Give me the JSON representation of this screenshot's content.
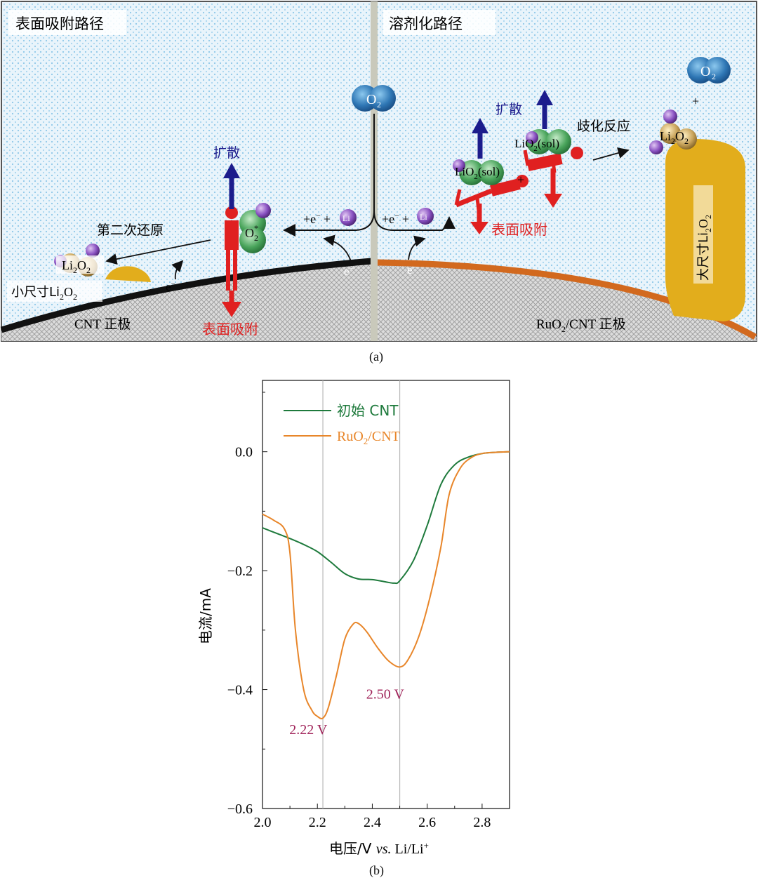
{
  "panel_a": {
    "caption": "(a)",
    "left_title": "表面吸附路径",
    "right_title": "溶剂化路径",
    "o2": "O",
    "o2_sub": "2",
    "o2_star_sub": "2",
    "o2_star_sup": "*",
    "diffuse": "扩散",
    "surface_adsorb": "表面吸附",
    "second_reduction": "第二次还原",
    "li2o2_main": "Li",
    "li2o2_sub1": "2",
    "li2o2_mid": "O",
    "li2o2_sub2": "2",
    "small_li2o2_prefix": "小尺寸Li",
    "large_li2o2_prefix": "大尺寸Li",
    "cnt_electrode": "CNT 正极",
    "ruo2_electrode_pre": "RuO",
    "ruo2_electrode_sub": "2",
    "ruo2_electrode_post": "/CNT 正极",
    "electron_label": "e",
    "electron_sup": "−",
    "plus_e": "+e",
    "plus_li": "+",
    "li_ion": "Li",
    "lio2_sol_pre": "LiO",
    "lio2_sol_sub": "2",
    "lio2_sol_post": "(sol)",
    "disproportionation": "歧化反应",
    "plus": "+"
  },
  "chart_data": {
    "type": "line",
    "caption": "(b)",
    "title": "",
    "xlabel": "电压/V vs. Li/Li+",
    "xlabel_parts": {
      "main": "电压/V ",
      "italic": "vs.",
      "tail": " Li/Li",
      "sup": "+"
    },
    "ylabel": "电流/mA",
    "xlim": [
      2.0,
      2.9
    ],
    "ylim": [
      -0.6,
      0.12
    ],
    "xticks": [
      2.0,
      2.2,
      2.4,
      2.6,
      2.8
    ],
    "xtick_labels": [
      "2.0",
      "2.2",
      "2.4",
      "2.6",
      "2.8"
    ],
    "yticks": [
      0.0,
      -0.2,
      -0.4,
      -0.6
    ],
    "ytick_labels": [
      "0.0",
      "−0.2",
      "−0.4",
      "−0.6"
    ],
    "vlines": [
      2.22,
      2.5
    ],
    "legend_position": "top-left",
    "series": [
      {
        "name": "初始 CNT",
        "legend_label": "初始 CNT",
        "color": "#1e7a3c",
        "x": [
          2.0,
          2.05,
          2.1,
          2.15,
          2.2,
          2.25,
          2.3,
          2.35,
          2.4,
          2.45,
          2.48,
          2.5,
          2.55,
          2.6,
          2.65,
          2.7,
          2.75,
          2.8,
          2.85,
          2.9
        ],
        "y": [
          -0.128,
          -0.137,
          -0.146,
          -0.156,
          -0.168,
          -0.186,
          -0.205,
          -0.214,
          -0.215,
          -0.219,
          -0.221,
          -0.217,
          -0.183,
          -0.124,
          -0.055,
          -0.022,
          -0.009,
          -0.003,
          -0.001,
          0.0
        ]
      },
      {
        "name": "RuO2/CNT",
        "legend_label_pre": "RuO",
        "legend_label_sub": "2",
        "legend_label_post": "/CNT",
        "color": "#e8862a",
        "x": [
          2.0,
          2.04,
          2.08,
          2.1,
          2.12,
          2.15,
          2.18,
          2.2,
          2.22,
          2.24,
          2.27,
          2.3,
          2.33,
          2.35,
          2.38,
          2.42,
          2.46,
          2.5,
          2.53,
          2.57,
          2.61,
          2.65,
          2.68,
          2.72,
          2.76,
          2.8,
          2.85,
          2.9
        ],
        "y": [
          -0.105,
          -0.115,
          -0.13,
          -0.17,
          -0.3,
          -0.4,
          -0.435,
          -0.445,
          -0.448,
          -0.43,
          -0.375,
          -0.315,
          -0.29,
          -0.289,
          -0.303,
          -0.33,
          -0.352,
          -0.362,
          -0.35,
          -0.31,
          -0.245,
          -0.16,
          -0.072,
          -0.028,
          -0.01,
          -0.003,
          -0.001,
          0.0
        ]
      }
    ],
    "annotations": [
      {
        "text": "2.22 V",
        "x": 2.2,
        "y": -0.475
      },
      {
        "text": "2.50 V",
        "x": 2.48,
        "y": -0.415
      }
    ]
  }
}
